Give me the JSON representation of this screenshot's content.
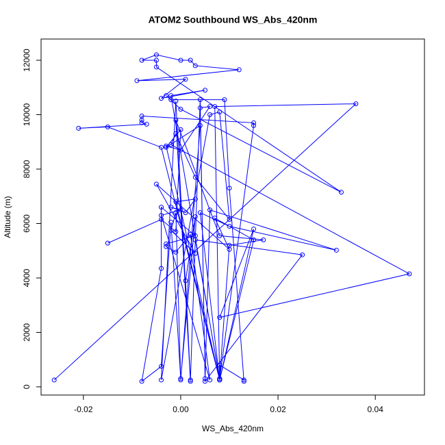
{
  "chart_data": {
    "type": "line",
    "title": "ATOM2 Southbound WS_Abs_420nm",
    "x_label": "WS_Abs_420nm",
    "y_label": "Altitude (m)",
    "color": "#0000ff",
    "markers": true,
    "x": [
      -0.026,
      0.036,
      0.007,
      0.008,
      -0.004,
      -0.015,
      -0.021,
      -0.007,
      -0.008,
      -0.008,
      -0.008,
      0.015,
      0.015,
      0.008,
      0.008,
      0.013,
      0.013,
      0.01,
      0.009,
      -0.002,
      -0.003,
      0.0,
      0.033,
      -0.005,
      -0.005,
      -0.008,
      -0.005,
      0.0,
      0.002,
      0.003,
      0.012,
      -0.009,
      0.001,
      -0.004,
      0.005,
      -0.002,
      0.008,
      -0.003,
      0.0,
      0.006,
      0.004,
      0.005,
      0.004,
      0.002,
      -0.001,
      -0.004,
      0.006,
      0.008,
      0.01,
      0.003,
      -0.001,
      -0.002,
      0.047,
      0.008,
      0.015,
      0.008,
      0.004,
      0.01,
      0.032,
      0.006,
      0.005,
      0.025,
      0.003,
      0.008,
      0.01,
      0.017,
      0.008,
      -0.001,
      0.002,
      0.001,
      0.003,
      0.0,
      -0.002,
      -0.004,
      -0.008,
      -0.004,
      -0.004,
      0.003,
      -0.003,
      -0.003,
      -0.001,
      0.002,
      0.006,
      -0.004,
      0.0,
      -0.002,
      0.001,
      0.003,
      -0.001,
      0.008,
      0.015,
      0.007,
      0.01,
      -0.005,
      0.003,
      -0.002,
      -0.001,
      0.0,
      0.004,
      -0.003,
      0.0,
      -0.001,
      -0.004,
      -0.015
    ],
    "values": [
      250,
      10400,
      10300,
      250,
      8800,
      9550,
      9500,
      9650,
      9700,
      9800,
      9950,
      9700,
      9600,
      300,
      800,
      250,
      200,
      7300,
      10550,
      10550,
      10700,
      10200,
      7150,
      11750,
      12000,
      12000,
      12200,
      12000,
      12000,
      11800,
      11650,
      11250,
      11300,
      10600,
      10900,
      10700,
      250,
      8850,
      8700,
      10300,
      10250,
      300,
      10550,
      250,
      10500,
      250,
      10000,
      10100,
      6150,
      7700,
      9300,
      8900,
      4150,
      2550,
      5800,
      250,
      6400,
      5900,
      5020,
      6500,
      200,
      4850,
      5400,
      300,
      5200,
      5400,
      5550,
      9800,
      200,
      3900,
      6250,
      300,
      6050,
      750,
      200,
      4350,
      6600,
      5550,
      5250,
      5150,
      4950,
      5600,
      250,
      6300,
      6500,
      6600,
      6400,
      6900,
      6800,
      250,
      5400,
      6200,
      5050,
      7450,
      4900,
      5750,
      6400,
      250,
      9600,
      8800,
      9450,
      5700,
      6150,
      5280
    ],
    "xlim": [
      -0.0287,
      0.0501
    ],
    "ylim": [
      -302,
      12780
    ],
    "xticks": [
      -0.02,
      {
        "value": 0,
        "label": "0.00"
      },
      0.02,
      0.04
    ],
    "yticks": [
      0,
      2000,
      4000,
      6000,
      8000,
      10000,
      12000
    ]
  }
}
